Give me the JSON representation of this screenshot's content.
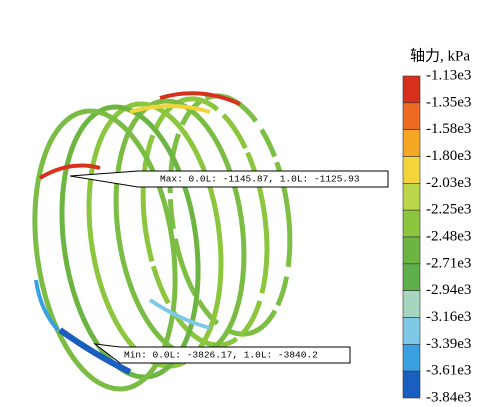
{
  "legend": {
    "title": "轴力, kPa",
    "labels": [
      "-1.13e3",
      "-1.35e3",
      "-1.58e3",
      "-1.80e3",
      "-2.03e3",
      "-2.25e3",
      "-2.48e3",
      "-2.71e3",
      "-2.94e3",
      "-3.16e3",
      "-3.39e3",
      "-3.61e3",
      "-3.84e3"
    ],
    "colors": [
      "#d8301e",
      "#ee6a22",
      "#f5a623",
      "#f3d43a",
      "#bcd64a",
      "#8cc63e",
      "#6db543",
      "#5fae4c",
      "#a6d6bf",
      "#7ec9e6",
      "#3a9fe0",
      "#1a5fbf"
    ]
  },
  "annotations": {
    "max": "Max: 0.0L: -1145.87, 1.0L: -1125.93",
    "min": "Min: 0.0L: -3826.17, 1.0L: -3840.2"
  }
}
